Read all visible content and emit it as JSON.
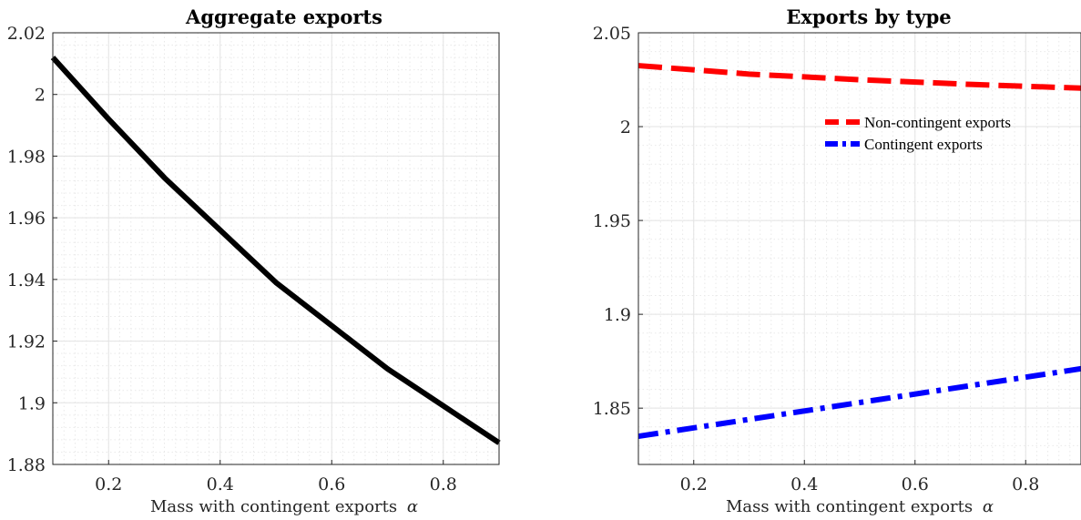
{
  "chart_data": [
    {
      "type": "line",
      "title": "Aggregate exports",
      "xlabel": "Mass with contingent exports",
      "xlabel_symbol": "α",
      "xlim": [
        0.1,
        0.9
      ],
      "ylim": [
        1.88,
        2.02
      ],
      "xticks": [
        0.2,
        0.4,
        0.6,
        0.8
      ],
      "yticks": [
        1.88,
        1.9,
        1.92,
        1.94,
        1.96,
        1.98,
        2,
        2.02
      ],
      "xtick_labels": [
        "0.2",
        "0.4",
        "0.6",
        "0.8"
      ],
      "ytick_labels": [
        "1.88",
        "1.9",
        "1.92",
        "1.94",
        "1.96",
        "1.98",
        "2",
        "2.02"
      ],
      "grid": true,
      "series": [
        {
          "color": "#000000",
          "style": "solid",
          "x": [
            0.1,
            0.2,
            0.3,
            0.4,
            0.5,
            0.6,
            0.7,
            0.8,
            0.9
          ],
          "y": [
            2.012,
            1.992,
            1.973,
            1.956,
            1.939,
            1.925,
            1.911,
            1.899,
            1.887
          ]
        }
      ]
    },
    {
      "type": "line",
      "title": "Exports by type",
      "xlabel": "Mass with contingent exports",
      "xlabel_symbol": "α",
      "xlim": [
        0.1,
        0.9
      ],
      "ylim": [
        1.82,
        2.05
      ],
      "xticks": [
        0.2,
        0.4,
        0.6,
        0.8
      ],
      "yticks": [
        1.85,
        1.9,
        1.95,
        2,
        2.05
      ],
      "xtick_labels": [
        "0.2",
        "0.4",
        "0.6",
        "0.8"
      ],
      "ytick_labels": [
        "1.85",
        "1.9",
        "1.95",
        "2",
        "2.05"
      ],
      "grid": true,
      "legend_placement": "upper-right",
      "series": [
        {
          "name": "Non-contingent exports",
          "color": "#ff0000",
          "style": "dashed",
          "x": [
            0.1,
            0.3,
            0.5,
            0.7,
            0.9
          ],
          "y": [
            2.0325,
            2.028,
            2.025,
            2.0225,
            2.0205
          ]
        },
        {
          "name": "Contingent exports",
          "color": "#0000ff",
          "style": "dash-dot",
          "x": [
            0.1,
            0.3,
            0.5,
            0.7,
            0.9
          ],
          "y": [
            1.835,
            1.844,
            1.853,
            1.862,
            1.871
          ]
        }
      ]
    }
  ]
}
